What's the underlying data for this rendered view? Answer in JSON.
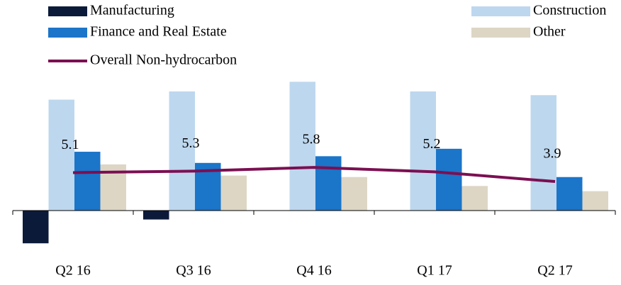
{
  "chart_data": {
    "type": "bar",
    "categories": [
      "Q2 16",
      "Q3 16",
      "Q4 16",
      "Q1 17",
      "Q2 17"
    ],
    "series": [
      {
        "name": "Manufacturing",
        "color": "#0c1a3a",
        "values": [
          -4.4,
          -1.2,
          0,
          0,
          0
        ]
      },
      {
        "name": "Construction",
        "color": "#bdd7ee",
        "values": [
          14.9,
          16.0,
          17.3,
          16.0,
          15.5
        ]
      },
      {
        "name": "Finance and Real Estate",
        "color": "#1b75c9",
        "values": [
          7.9,
          6.4,
          7.3,
          8.3,
          4.5
        ]
      },
      {
        "name": "Other",
        "color": "#ddd6c5",
        "values": [
          6.2,
          4.7,
          4.5,
          3.3,
          2.6
        ]
      },
      {
        "name": "Overall Non-hydrocarbon",
        "type": "line",
        "color": "#7b0f52",
        "values": [
          5.1,
          5.3,
          5.8,
          5.2,
          3.9
        ]
      }
    ],
    "ylim": [
      -5,
      18
    ]
  }
}
